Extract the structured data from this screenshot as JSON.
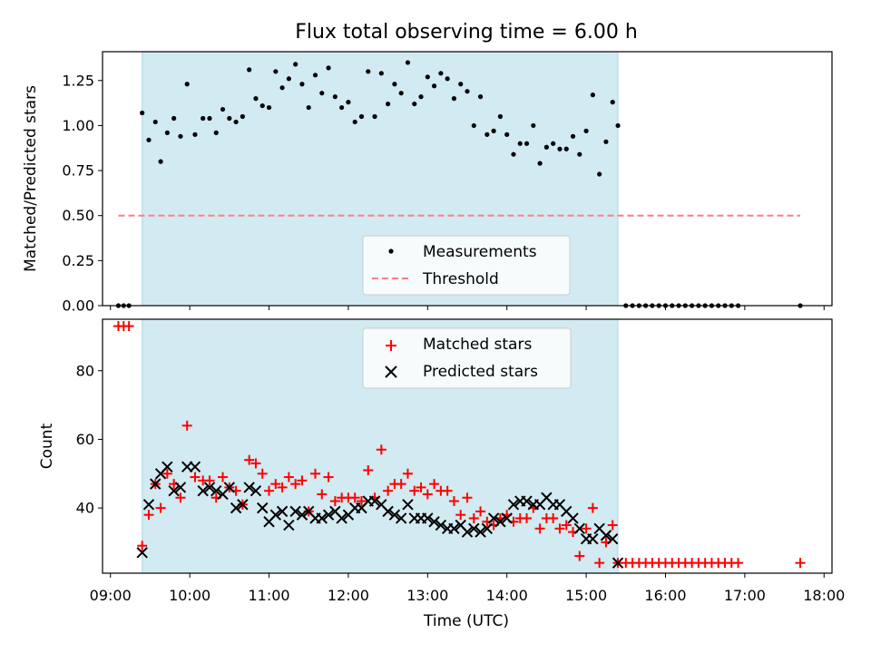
{
  "chart_data": [
    {
      "type": "scatter",
      "title": "Flux total observing time = 6.00 h",
      "ylabel": "Matched/Predicted stars",
      "xlabel": "",
      "xlim": [
        "08:54",
        "18:06"
      ],
      "ylim": [
        0,
        1.41
      ],
      "yticks": [
        "0.00",
        "0.25",
        "0.50",
        "0.75",
        "1.00",
        "1.25"
      ],
      "shaded_interval": [
        "09:24",
        "15:24"
      ],
      "shade_color": "#add8e6",
      "threshold": {
        "name": "Threshold",
        "y": 0.5,
        "x_range": [
          "09:06",
          "17:42"
        ],
        "color": "#ff7f7f",
        "style": "dashed"
      },
      "legend": {
        "position": "lower center",
        "entries": [
          "Measurements",
          "Threshold"
        ]
      },
      "series": [
        {
          "name": "Measurements",
          "marker": "dot",
          "color": "#000000",
          "x": [
            "09:06",
            "09:10",
            "09:14",
            "09:24",
            "09:29",
            "09:34",
            "09:38",
            "09:43",
            "09:48",
            "09:53",
            "09:58",
            "10:04",
            "10:10",
            "10:15",
            "10:20",
            "10:25",
            "10:30",
            "10:35",
            "10:40",
            "10:45",
            "10:50",
            "10:55",
            "11:00",
            "11:05",
            "11:10",
            "11:15",
            "11:20",
            "11:25",
            "11:30",
            "11:35",
            "11:40",
            "11:45",
            "11:50",
            "11:55",
            "12:00",
            "12:05",
            "12:10",
            "12:15",
            "12:20",
            "12:25",
            "12:30",
            "12:35",
            "12:40",
            "12:45",
            "12:50",
            "12:55",
            "13:00",
            "13:05",
            "13:10",
            "13:15",
            "13:20",
            "13:25",
            "13:30",
            "13:35",
            "13:40",
            "13:45",
            "13:50",
            "13:55",
            "14:00",
            "14:05",
            "14:10",
            "14:15",
            "14:20",
            "14:25",
            "14:30",
            "14:35",
            "14:40",
            "14:45",
            "14:50",
            "14:55",
            "15:00",
            "15:05",
            "15:10",
            "15:15",
            "15:20",
            "15:24",
            "15:30",
            "15:35",
            "15:40",
            "15:45",
            "15:50",
            "15:55",
            "16:00",
            "16:05",
            "16:10",
            "16:15",
            "16:20",
            "16:25",
            "16:30",
            "16:35",
            "16:40",
            "16:45",
            "16:50",
            "16:55",
            "17:42"
          ],
          "y": [
            0,
            0,
            0,
            1.07,
            0.92,
            1.02,
            0.8,
            0.96,
            1.04,
            0.94,
            1.23,
            0.95,
            1.04,
            1.04,
            0.96,
            1.09,
            1.04,
            1.02,
            1.05,
            1.31,
            1.15,
            1.11,
            1.1,
            1.3,
            1.21,
            1.26,
            1.34,
            1.23,
            1.1,
            1.28,
            1.18,
            1.32,
            1.16,
            1.1,
            1.13,
            1.02,
            1.05,
            1.3,
            1.05,
            1.29,
            1.12,
            1.23,
            1.18,
            1.35,
            1.12,
            1.16,
            1.27,
            1.22,
            1.29,
            1.26,
            1.15,
            1.23,
            1.19,
            1.0,
            1.16,
            0.95,
            0.97,
            1.05,
            0.95,
            0.84,
            0.9,
            0.9,
            1.0,
            0.79,
            0.88,
            0.9,
            0.87,
            0.87,
            0.94,
            0.84,
            0.97,
            1.17,
            0.73,
            0.91,
            1.13,
            1.0,
            0,
            0,
            0,
            0,
            0,
            0,
            0,
            0,
            0,
            0,
            0,
            0,
            0,
            0,
            0,
            0,
            0,
            0,
            0
          ]
        }
      ]
    },
    {
      "type": "scatter",
      "title": "",
      "ylabel": "Count",
      "xlabel": "Time (UTC)",
      "xlim": [
        "08:54",
        "18:06"
      ],
      "ylim": [
        21,
        95
      ],
      "yticks": [
        "40",
        "60",
        "80"
      ],
      "xticks": [
        "09:00",
        "10:00",
        "11:00",
        "12:00",
        "13:00",
        "14:00",
        "15:00",
        "16:00",
        "17:00",
        "18:00"
      ],
      "shaded_interval": [
        "09:24",
        "15:24"
      ],
      "shade_color": "#add8e6",
      "legend": {
        "position": "upper center",
        "entries": [
          "Matched stars",
          "Predicted stars"
        ]
      },
      "series": [
        {
          "name": "Matched stars",
          "marker": "plus",
          "color": "#ff0000",
          "x": [
            "09:06",
            "09:10",
            "09:14",
            "09:24",
            "09:29",
            "09:34",
            "09:38",
            "09:43",
            "09:48",
            "09:53",
            "09:58",
            "10:04",
            "10:10",
            "10:15",
            "10:20",
            "10:25",
            "10:30",
            "10:35",
            "10:40",
            "10:45",
            "10:50",
            "10:55",
            "11:00",
            "11:05",
            "11:10",
            "11:15",
            "11:20",
            "11:25",
            "11:30",
            "11:35",
            "11:40",
            "11:45",
            "11:50",
            "11:55",
            "12:00",
            "12:05",
            "12:10",
            "12:15",
            "12:20",
            "12:25",
            "12:30",
            "12:35",
            "12:40",
            "12:45",
            "12:50",
            "12:55",
            "13:00",
            "13:05",
            "13:10",
            "13:15",
            "13:20",
            "13:25",
            "13:30",
            "13:35",
            "13:40",
            "13:45",
            "13:50",
            "13:55",
            "14:00",
            "14:05",
            "14:10",
            "14:15",
            "14:20",
            "14:25",
            "14:30",
            "14:35",
            "14:40",
            "14:45",
            "14:50",
            "14:55",
            "15:00",
            "15:05",
            "15:10",
            "15:15",
            "15:20",
            "15:24",
            "15:30",
            "15:35",
            "15:40",
            "15:45",
            "15:50",
            "15:55",
            "16:00",
            "16:05",
            "16:10",
            "16:15",
            "16:20",
            "16:25",
            "16:30",
            "16:35",
            "16:40",
            "16:45",
            "16:50",
            "16:55",
            "17:42"
          ],
          "y": [
            93,
            93,
            93,
            29,
            38,
            47,
            40,
            50,
            47,
            43,
            64,
            49,
            48,
            48,
            43,
            49,
            46,
            45,
            41,
            54,
            53,
            50,
            45,
            47,
            46,
            49,
            47,
            48,
            39,
            50,
            44,
            49,
            42,
            43,
            43,
            43,
            42,
            51,
            43,
            57,
            45,
            47,
            47,
            50,
            45,
            46,
            44,
            47,
            45,
            45,
            42,
            38,
            43,
            37,
            39,
            36,
            35,
            37,
            38,
            36,
            37,
            37,
            40,
            34,
            37,
            37,
            34,
            35,
            33,
            26,
            34,
            40,
            24,
            30,
            35,
            24,
            24,
            24,
            24,
            24,
            24,
            24,
            24,
            24,
            24,
            24,
            24,
            24,
            24,
            24,
            24,
            24,
            24,
            24,
            24
          ]
        },
        {
          "name": "Predicted stars",
          "marker": "x",
          "color": "#000000",
          "x": [
            "09:24",
            "09:29",
            "09:34",
            "09:38",
            "09:43",
            "09:48",
            "09:53",
            "09:58",
            "10:04",
            "10:10",
            "10:15",
            "10:20",
            "10:25",
            "10:30",
            "10:35",
            "10:40",
            "10:45",
            "10:50",
            "10:55",
            "11:00",
            "11:05",
            "11:10",
            "11:15",
            "11:20",
            "11:25",
            "11:30",
            "11:35",
            "11:40",
            "11:45",
            "11:50",
            "11:55",
            "12:00",
            "12:05",
            "12:10",
            "12:15",
            "12:20",
            "12:25",
            "12:30",
            "12:35",
            "12:40",
            "12:45",
            "12:50",
            "12:55",
            "13:00",
            "13:05",
            "13:10",
            "13:15",
            "13:20",
            "13:25",
            "13:30",
            "13:35",
            "13:40",
            "13:45",
            "13:50",
            "13:55",
            "14:00",
            "14:05",
            "14:10",
            "14:15",
            "14:20",
            "14:25",
            "14:30",
            "14:35",
            "14:40",
            "14:45",
            "14:50",
            "14:55",
            "15:00",
            "15:05",
            "15:10",
            "15:15",
            "15:20",
            "15:24"
          ],
          "y": [
            27,
            41,
            47,
            50,
            52,
            45,
            46,
            52,
            52,
            45,
            46,
            45,
            44,
            46,
            40,
            41,
            46,
            45,
            40,
            36,
            38,
            39,
            35,
            39,
            38,
            39,
            37,
            37,
            38,
            39,
            37,
            38,
            40,
            40,
            42,
            42,
            41,
            39,
            38,
            37,
            41,
            37,
            37,
            37,
            36,
            35,
            34,
            34,
            35,
            33,
            34,
            33,
            34,
            37,
            36,
            37,
            41,
            42,
            42,
            41,
            41,
            43,
            41,
            41,
            39,
            37,
            34,
            31,
            31,
            34,
            32,
            31,
            24
          ]
        }
      ]
    }
  ]
}
